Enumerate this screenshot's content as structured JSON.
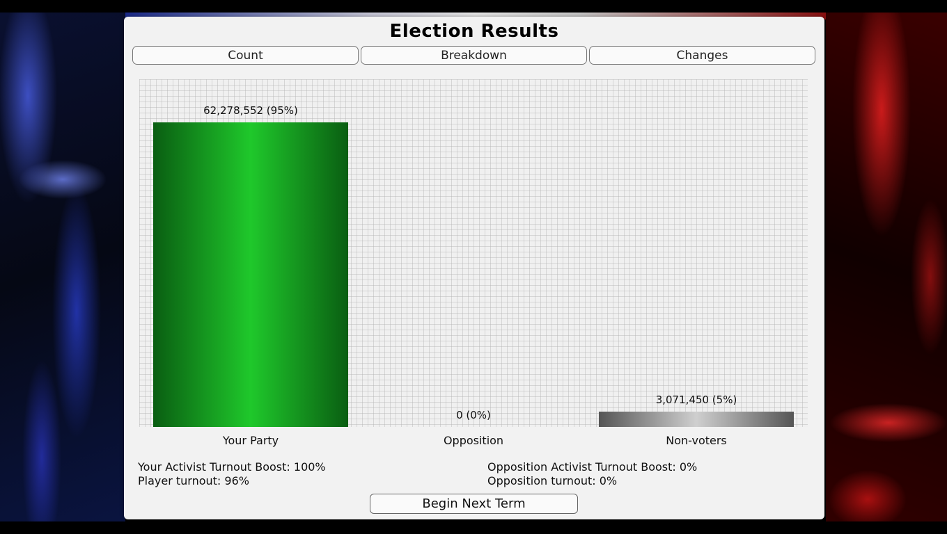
{
  "window": {
    "title": "Election Results"
  },
  "tabs": [
    {
      "label": "Count"
    },
    {
      "label": "Breakdown"
    },
    {
      "label": "Changes"
    }
  ],
  "chart_data": {
    "type": "bar",
    "categories": [
      "Your Party",
      "Opposition",
      "Non-voters"
    ],
    "values": [
      62278552,
      0,
      3071450
    ],
    "percentages": [
      95,
      0,
      5
    ],
    "data_labels": [
      "62,278,552 (95%)",
      "0 (0%)",
      "3,071,450 (5%)"
    ],
    "colors": [
      "#1fc82b",
      "#888888",
      "#9a9a9a"
    ],
    "ylim": [
      0,
      65349998
    ],
    "grid": true
  },
  "stats": {
    "player_boost": "Your Activist Turnout Boost: 100%",
    "player_turnout": "Player turnout: 96%",
    "opposition_boost": "Opposition Activist Turnout Boost: 0%",
    "opposition_turnout": "Opposition turnout: 0%"
  },
  "actions": {
    "next_term_label": "Begin Next Term"
  }
}
